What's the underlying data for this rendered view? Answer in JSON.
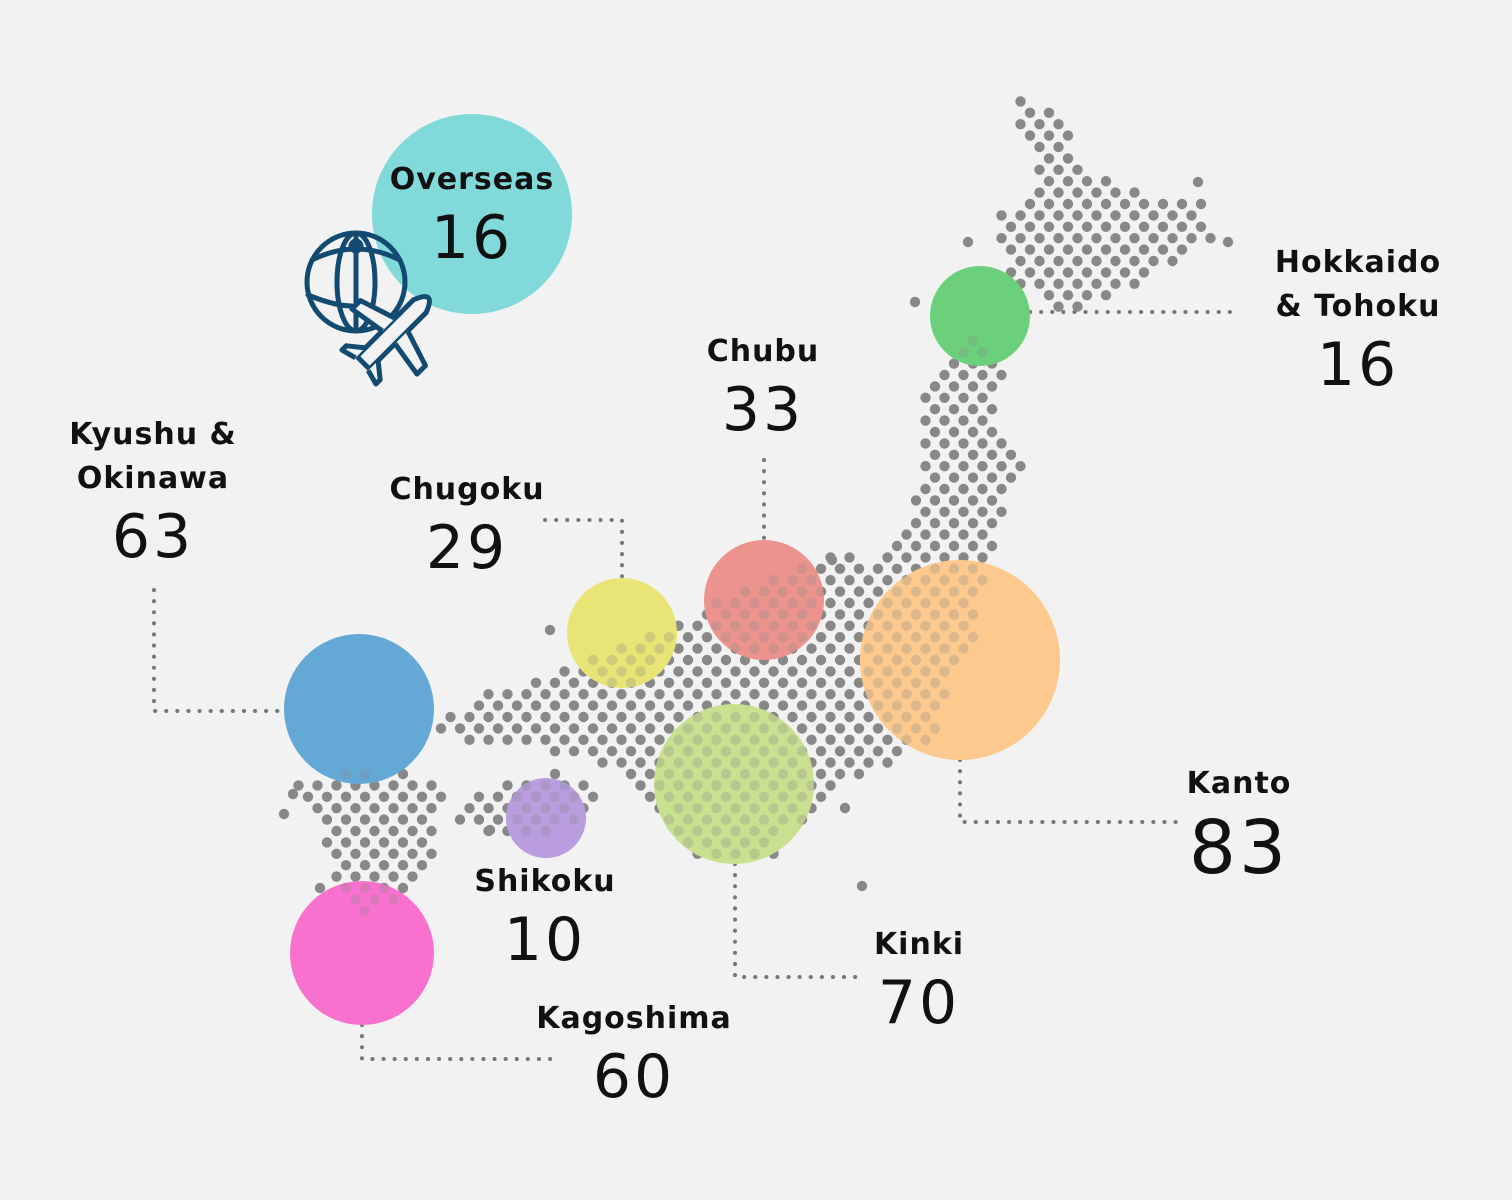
{
  "regions": {
    "overseas": {
      "name_lines": [
        "Overseas"
      ],
      "count": "16",
      "value": 16,
      "color": "#82d9d9"
    },
    "hokkaido": {
      "name_lines": [
        "Hokkaido",
        "& Tohoku"
      ],
      "count": "16",
      "value": 16,
      "color": "#6ccf7c"
    },
    "chubu": {
      "name_lines": [
        "Chubu"
      ],
      "count": "33",
      "value": 33,
      "color": "#ec938d"
    },
    "chugoku": {
      "name_lines": [
        "Chugoku"
      ],
      "count": "29",
      "value": 29,
      "color": "#e9e476"
    },
    "kyushu": {
      "name_lines": [
        "Kyushu &",
        "Okinawa"
      ],
      "count": "63",
      "value": 63,
      "color": "#64a8d6"
    },
    "shikoku": {
      "name_lines": [
        "Shikoku"
      ],
      "count": "10",
      "value": 10,
      "color": "#b99ddf"
    },
    "kinki": {
      "name_lines": [
        "Kinki"
      ],
      "count": "70",
      "value": 70,
      "color": "#c9e090"
    },
    "kanto": {
      "name_lines": [
        "Kanto"
      ],
      "count": "83",
      "value": 83,
      "color": "#fdc98e"
    },
    "kagoshima": {
      "name_lines": [
        "Kagoshima"
      ],
      "count": "60",
      "value": 60,
      "color": "#f971cf"
    }
  },
  "icons": {
    "overseas": "globe-airplane-icon"
  },
  "colors": {
    "background": "#f2f2f2",
    "dots": "#888888",
    "leader": "#777777",
    "icon": "#124a72"
  }
}
